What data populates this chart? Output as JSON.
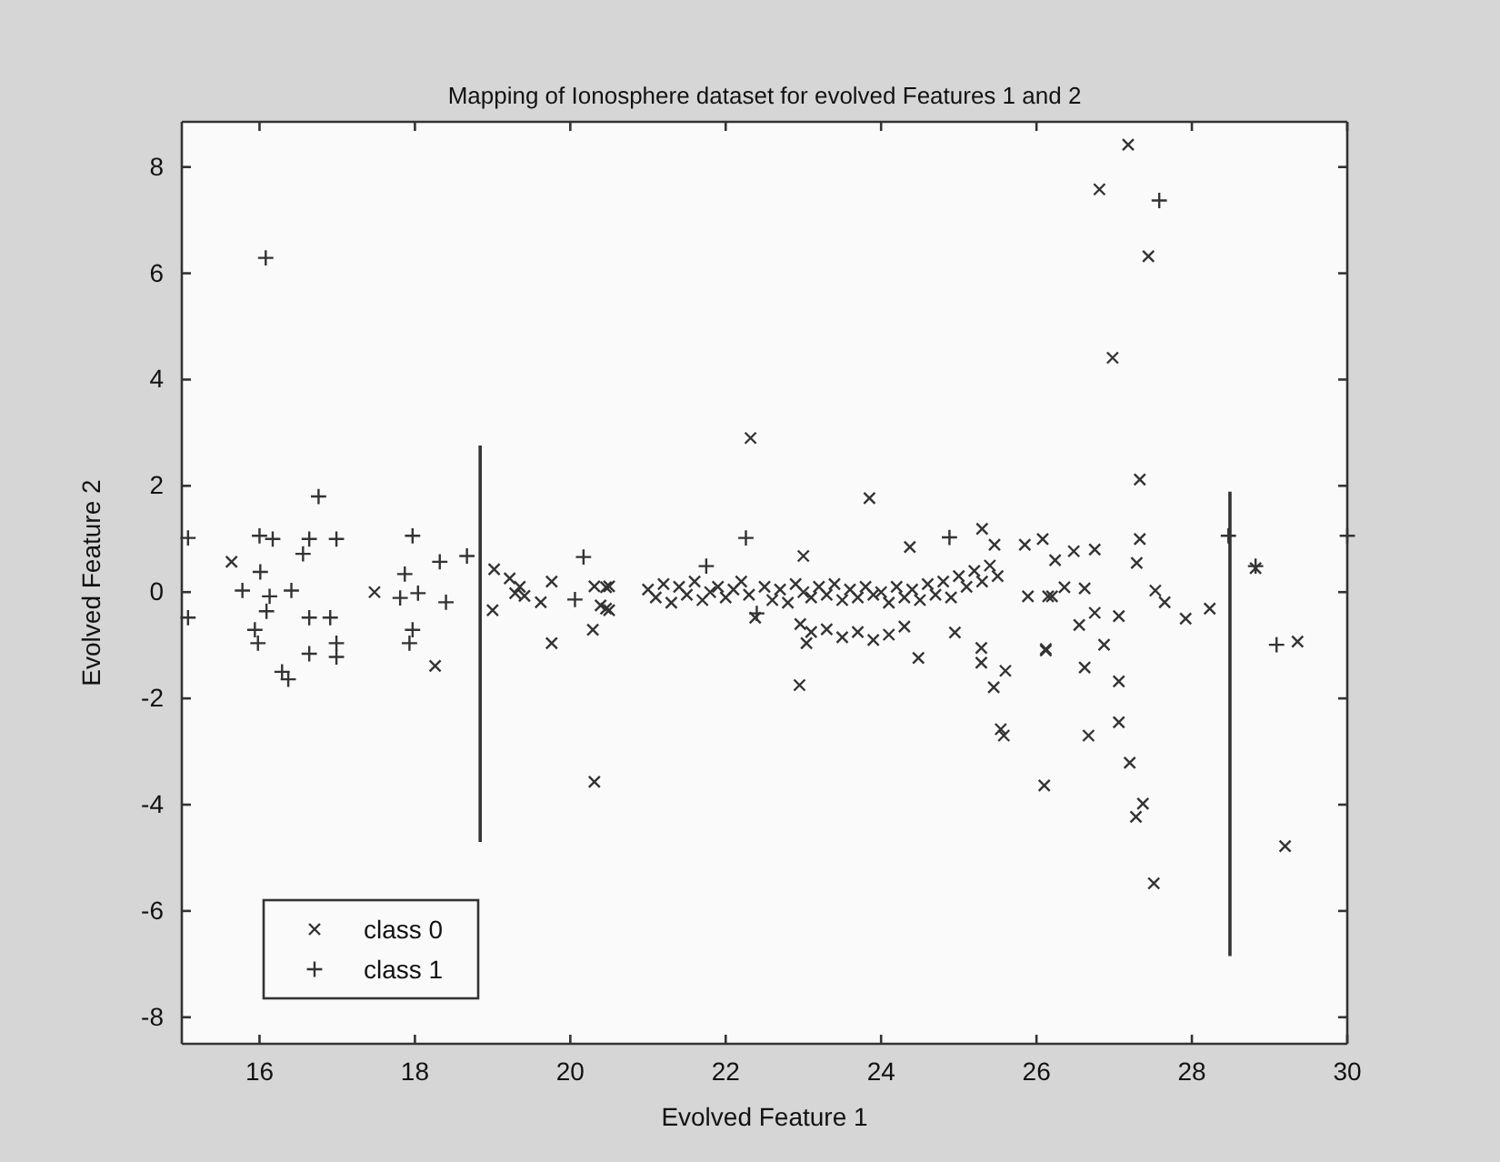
{
  "chart_data": {
    "type": "scatter",
    "title": "Mapping of Ionosphere dataset for evolved Features 1 and 2",
    "xlabel": "Evolved Feature 1",
    "ylabel": "Evolved Feature 2",
    "xlim": [
      15,
      30
    ],
    "ylim": [
      -8.5,
      8.85
    ],
    "xticks": [
      16,
      18,
      20,
      22,
      24,
      26,
      28,
      30
    ],
    "yticks": [
      -8,
      -6,
      -4,
      -2,
      0,
      2,
      4,
      6,
      8
    ],
    "grid": false,
    "legend": "bottom left",
    "series": [
      {
        "name": "class 0",
        "color": "#333333",
        "marker": "cross",
        "x": [
          15.64,
          17.48,
          18.26,
          19.02,
          19.22,
          19.29,
          19.35,
          19.41,
          19.0,
          19.62,
          19.76,
          19.76,
          20.31,
          20.5,
          20.39,
          20.5,
          20.29,
          20.31,
          20.46,
          20.46,
          21.0,
          21.1,
          21.2,
          21.3,
          21.4,
          21.5,
          21.6,
          21.7,
          21.8,
          21.9,
          22.0,
          22.1,
          22.2,
          22.3,
          22.38,
          22.5,
          22.6,
          22.7,
          22.8,
          22.9,
          23.0,
          23.0,
          23.1,
          23.2,
          23.3,
          23.4,
          23.5,
          23.6,
          23.7,
          23.8,
          23.9,
          24.0,
          24.1,
          24.2,
          24.3,
          24.4,
          24.5,
          24.6,
          24.7,
          24.8,
          24.9,
          25.0,
          25.1,
          25.2,
          25.3,
          25.4,
          25.5,
          22.96,
          23.1,
          23.3,
          23.5,
          23.7,
          23.9,
          24.1,
          24.3,
          23.04,
          24.48,
          24.95,
          22.95,
          25.29,
          25.29,
          25.6,
          25.45,
          25.54,
          25.58,
          26.1,
          26.15,
          26.12,
          22.32,
          23.85,
          25.3,
          24.37,
          25.46,
          25.85,
          26.08,
          26.24,
          25.89,
          26.2,
          26.36,
          26.62,
          26.48,
          26.75,
          27.33,
          27.29,
          27.53,
          27.65,
          27.92,
          28.23,
          26.75,
          26.55,
          26.87,
          27.06,
          26.12,
          26.62,
          27.06,
          27.06,
          26.67,
          27.2,
          27.37,
          27.28,
          27.51,
          27.33,
          27.18,
          26.81,
          27.44,
          26.98,
          29.36,
          29.2,
          28.82
        ],
        "values": [
          0.57,
          0.0,
          -1.39,
          0.43,
          0.26,
          -0.02,
          0.1,
          -0.07,
          -0.34,
          -0.19,
          0.2,
          -0.96,
          0.11,
          0.11,
          -0.25,
          -0.34,
          -0.71,
          -3.57,
          0.09,
          -0.31,
          0.05,
          -0.1,
          0.15,
          -0.2,
          0.1,
          -0.05,
          0.2,
          -0.15,
          0.0,
          0.1,
          -0.1,
          0.05,
          0.2,
          -0.05,
          -0.48,
          0.1,
          -0.15,
          0.05,
          -0.2,
          0.15,
          0.68,
          0.0,
          -0.1,
          0.1,
          -0.05,
          0.15,
          -0.15,
          0.05,
          -0.1,
          0.1,
          -0.05,
          0.0,
          -0.2,
          0.1,
          -0.1,
          0.05,
          -0.15,
          0.15,
          -0.05,
          0.2,
          -0.1,
          0.3,
          0.1,
          0.4,
          0.2,
          0.5,
          0.3,
          -0.6,
          -0.75,
          -0.7,
          -0.85,
          -0.75,
          -0.9,
          -0.8,
          -0.65,
          -0.96,
          -1.24,
          -0.76,
          -1.75,
          -1.05,
          -1.33,
          -1.48,
          -1.79,
          -2.58,
          -2.7,
          -3.64,
          -0.08,
          -1.1,
          2.9,
          1.77,
          1.19,
          0.85,
          0.89,
          0.89,
          1.0,
          0.6,
          -0.08,
          -0.08,
          0.09,
          0.07,
          0.77,
          0.8,
          1.0,
          0.55,
          0.03,
          -0.19,
          -0.5,
          -0.31,
          -0.39,
          -0.62,
          -0.99,
          -0.45,
          -1.07,
          -1.42,
          -1.68,
          -2.45,
          -2.7,
          -3.21,
          -3.98,
          -4.23,
          -5.48,
          2.12,
          8.42,
          7.58,
          6.32,
          4.41,
          -0.93,
          -4.78,
          0.45
        ]
      },
      {
        "name": "class 1",
        "color": "#333333",
        "marker": "plus",
        "x": [
          15.08,
          15.08,
          16.08,
          16.0,
          16.17,
          16.76,
          16.64,
          16.99,
          16.56,
          16.01,
          15.78,
          16.13,
          16.41,
          16.09,
          15.94,
          15.98,
          16.64,
          16.91,
          16.99,
          16.64,
          16.99,
          16.29,
          16.37,
          17.97,
          18.32,
          18.67,
          17.87,
          17.81,
          18.04,
          18.4,
          17.97,
          17.93,
          20.17,
          20.06,
          21.75,
          22.26,
          22.4,
          24.88,
          27.58,
          28.47,
          28.82,
          29.09,
          30.0
        ],
        "values": [
          -0.48,
          1.02,
          6.29,
          1.06,
          1.0,
          1.8,
          1.0,
          1.0,
          0.72,
          0.38,
          0.03,
          -0.08,
          0.03,
          -0.36,
          -0.71,
          -0.96,
          -0.48,
          -0.48,
          -0.96,
          -1.16,
          -1.22,
          -1.5,
          -1.64,
          1.06,
          0.57,
          0.68,
          0.34,
          -0.11,
          -0.02,
          -0.19,
          -0.71,
          -0.96,
          0.66,
          -0.14,
          0.49,
          1.02,
          -0.4,
          1.03,
          7.37,
          1.06,
          0.49,
          -0.99,
          1.06
        ]
      },
      {
        "type": "line",
        "color": "#333333",
        "x": [
          18.84,
          18.84
        ],
        "values": [
          2.76,
          -4.7
        ]
      },
      {
        "type": "line",
        "color": "#333333",
        "x": [
          28.49,
          28.49
        ],
        "values": [
          1.89,
          -6.85
        ]
      }
    ]
  }
}
